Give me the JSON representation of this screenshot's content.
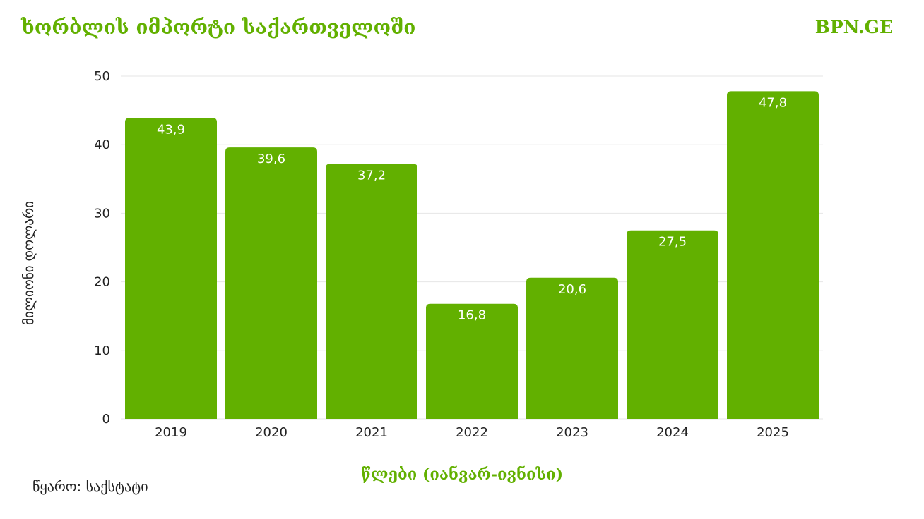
{
  "header": {
    "title": "ხორბლის იმპორტი საქართველოში",
    "brand": "BPN.GE"
  },
  "footer": {
    "source": "წყარო: საქსტატი"
  },
  "colors": {
    "accent": "#62b000",
    "bar": "#62b000",
    "grid": "#e6e6e6"
  },
  "chart_data": {
    "type": "bar",
    "categories": [
      "2019",
      "2020",
      "2021",
      "2022",
      "2023",
      "2024",
      "2025"
    ],
    "values": [
      43.9,
      39.6,
      37.2,
      16.8,
      20.6,
      27.5,
      47.8
    ],
    "value_labels": [
      "43,9",
      "39,6",
      "37,2",
      "16,8",
      "20,6",
      "27,5",
      "47,8"
    ],
    "ylabel": "მილიონი დოლარი",
    "xlabel": "წლები (იანვარ-ივნისი)",
    "ylim": [
      0,
      50
    ],
    "yticks": [
      0,
      10,
      20,
      30,
      40,
      50
    ],
    "grid": true
  }
}
